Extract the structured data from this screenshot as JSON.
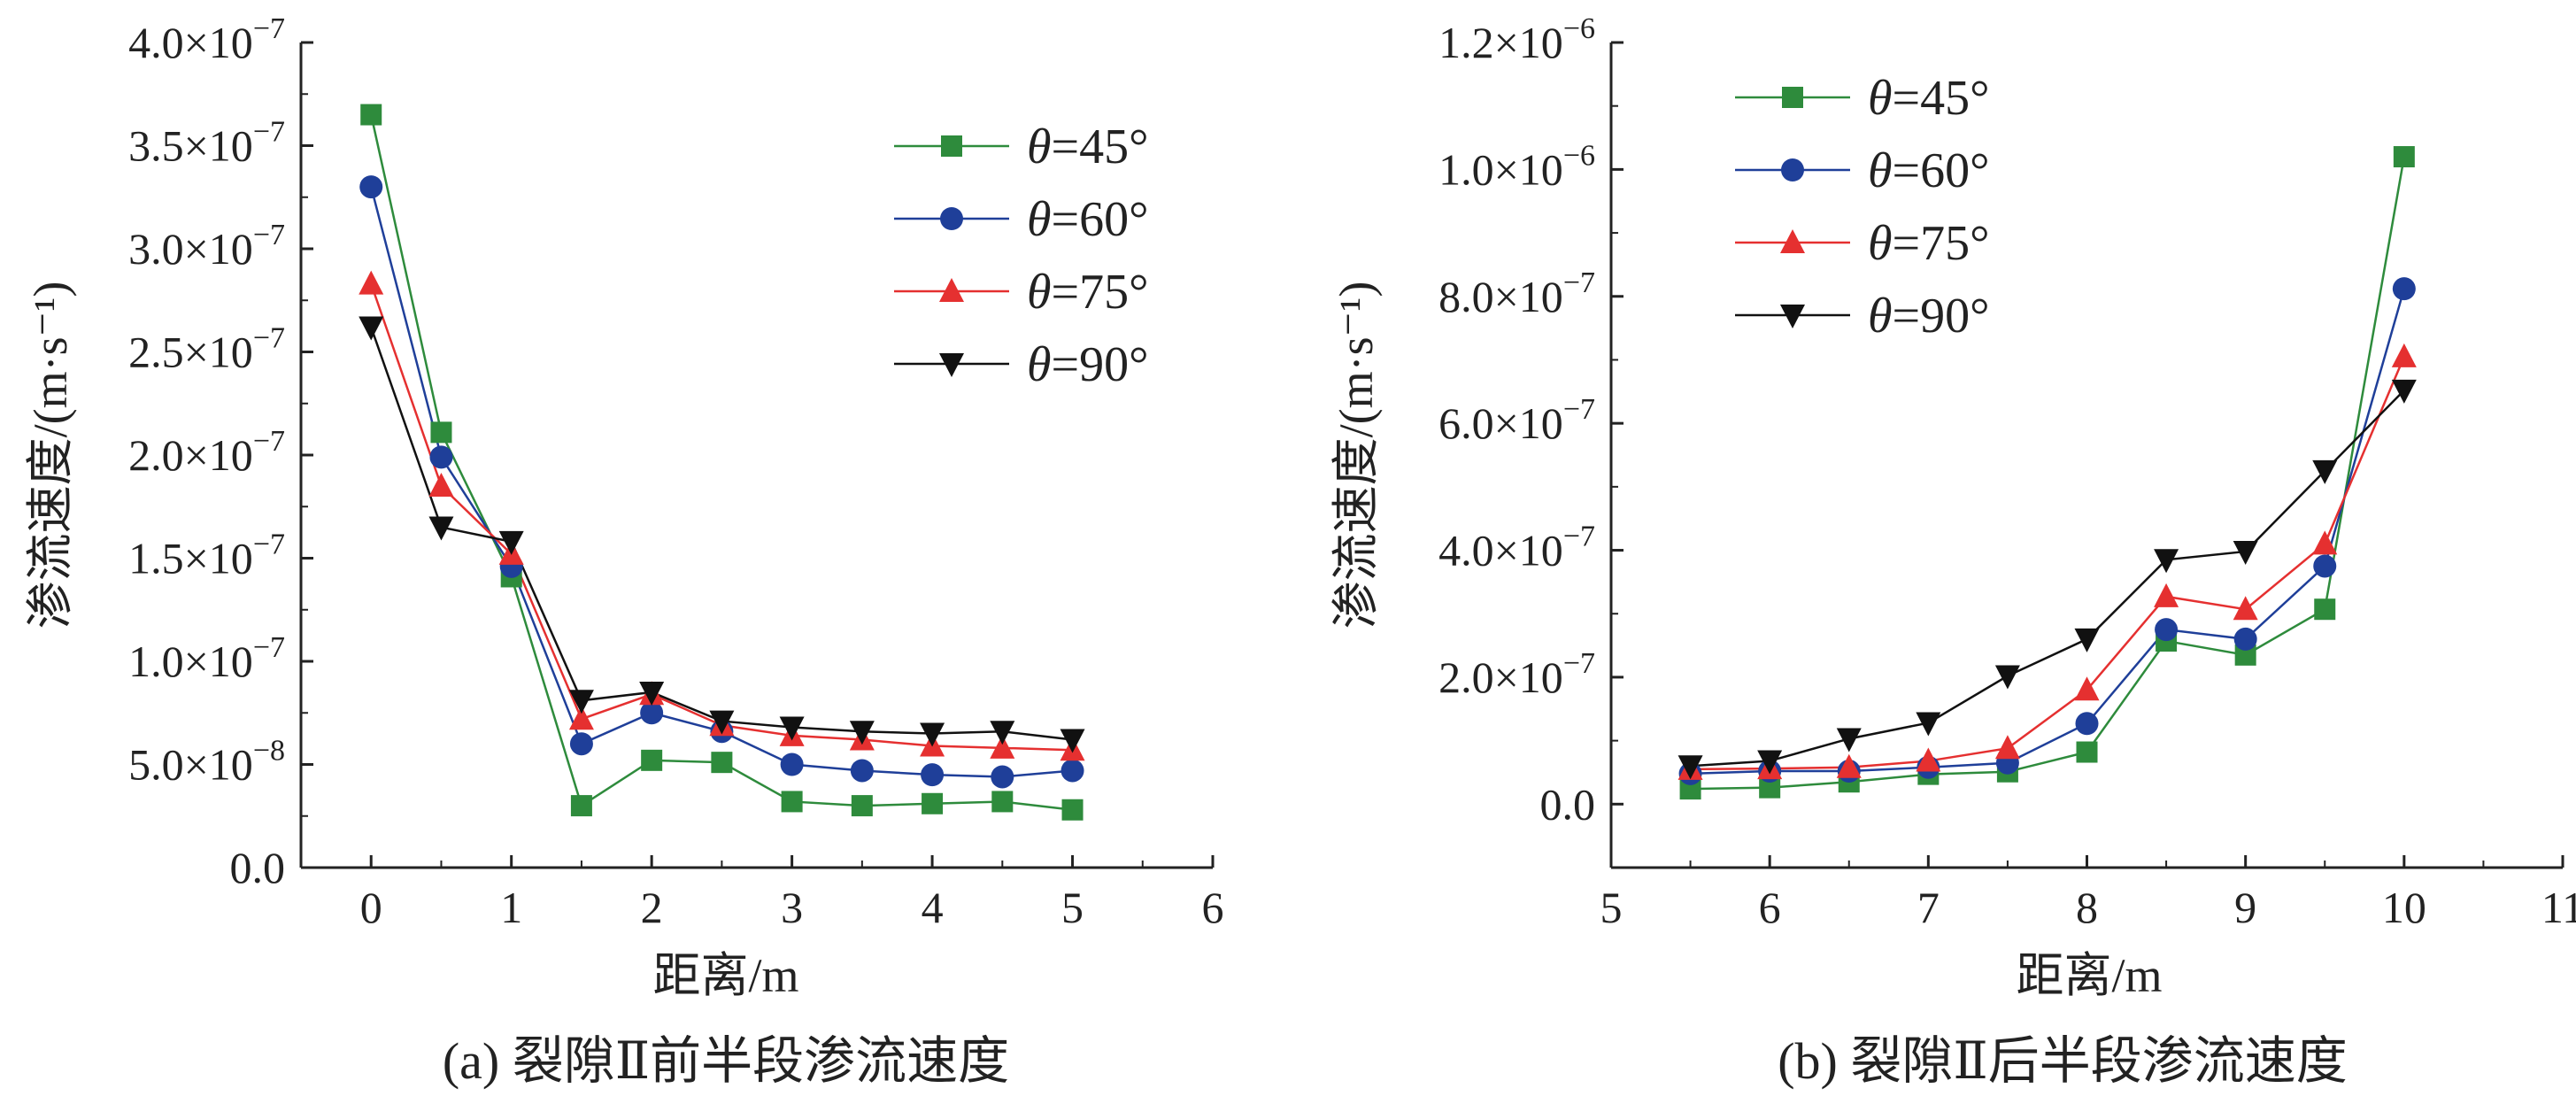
{
  "chart_data": [
    {
      "type": "line",
      "caption": "(a) 裂隙Ⅱ前半段渗流速度",
      "xlabel": "距离/m",
      "ylabel": "渗流速度/(m·s⁻¹)",
      "xlim": [
        -0.5,
        6
      ],
      "ylim": [
        0,
        4e-07
      ],
      "x_ticks": [
        0,
        1,
        2,
        3,
        4,
        5,
        6
      ],
      "y_ticks": [
        {
          "value": 0,
          "label": "0.0"
        },
        {
          "value": 5e-08,
          "label": "5.0×10",
          "exp": "−8"
        },
        {
          "value": 1e-07,
          "label": "1.0×10",
          "exp": "−7"
        },
        {
          "value": 1.5e-07,
          "label": "1.5×10",
          "exp": "−7"
        },
        {
          "value": 2e-07,
          "label": "2.0×10",
          "exp": "−7"
        },
        {
          "value": 2.5e-07,
          "label": "2.5×10",
          "exp": "−7"
        },
        {
          "value": 3e-07,
          "label": "3.0×10",
          "exp": "−7"
        },
        {
          "value": 3.5e-07,
          "label": "3.5×10",
          "exp": "−7"
        },
        {
          "value": 4e-07,
          "label": "4.0×10",
          "exp": "−7"
        }
      ],
      "legend_position": "top-right",
      "x": [
        0,
        0.5,
        1,
        1.5,
        2,
        2.5,
        3,
        3.5,
        4,
        4.5,
        5
      ],
      "series": [
        {
          "name": "θ=45°",
          "theta": "θ",
          "deg": "=45°",
          "color": "#2e8b3c",
          "marker": "square",
          "values": [
            3.65e-07,
            2.11e-07,
            1.41e-07,
            3e-08,
            5.2e-08,
            5.1e-08,
            3.2e-08,
            3e-08,
            3.1e-08,
            3.2e-08,
            2.8e-08
          ]
        },
        {
          "name": "θ=60°",
          "theta": "θ",
          "deg": "=60°",
          "color": "#1f3f99",
          "marker": "circle",
          "values": [
            3.3e-07,
            1.99e-07,
            1.46e-07,
            6e-08,
            7.5e-08,
            6.6e-08,
            5e-08,
            4.7e-08,
            4.5e-08,
            4.4e-08,
            4.7e-08
          ]
        },
        {
          "name": "θ=75°",
          "theta": "θ",
          "deg": "=75°",
          "color": "#e53030",
          "marker": "triangle-up",
          "values": [
            2.83e-07,
            1.85e-07,
            1.52e-07,
            7.2e-08,
            8.4e-08,
            6.9e-08,
            6.4e-08,
            6.2e-08,
            5.9e-08,
            5.8e-08,
            5.7e-08
          ]
        },
        {
          "name": "θ=90°",
          "theta": "θ",
          "deg": "=90°",
          "color": "#111111",
          "marker": "triangle-down",
          "values": [
            2.62e-07,
            1.65e-07,
            1.58e-07,
            8.1e-08,
            8.5e-08,
            7.1e-08,
            6.8e-08,
            6.6e-08,
            6.5e-08,
            6.6e-08,
            6.2e-08
          ]
        }
      ]
    },
    {
      "type": "line",
      "caption": "(b) 裂隙Ⅱ后半段渗流速度",
      "xlabel": "距离/m",
      "ylabel": "渗流速度/(m·s⁻¹)",
      "xlim": [
        5,
        11
      ],
      "ylim": [
        -1e-07,
        1.2e-06
      ],
      "x_ticks": [
        5,
        6,
        7,
        8,
        9,
        10,
        11
      ],
      "y_ticks": [
        {
          "value": 0,
          "label": "0.0"
        },
        {
          "value": 2e-07,
          "label": "2.0×10",
          "exp": "−7"
        },
        {
          "value": 4e-07,
          "label": "4.0×10",
          "exp": "−7"
        },
        {
          "value": 6e-07,
          "label": "6.0×10",
          "exp": "−7"
        },
        {
          "value": 8e-07,
          "label": "8.0×10",
          "exp": "−7"
        },
        {
          "value": 1e-06,
          "label": "1.0×10",
          "exp": "−6"
        },
        {
          "value": 1.2e-06,
          "label": "1.2×10",
          "exp": "−6"
        }
      ],
      "legend_position": "top-left",
      "x": [
        5.5,
        6,
        6.5,
        7,
        7.5,
        8,
        8.5,
        9,
        9.5,
        10
      ],
      "series": [
        {
          "name": "θ=45°",
          "theta": "θ",
          "deg": "=45°",
          "color": "#2e8b3c",
          "marker": "square",
          "values": [
            2.4e-08,
            2.6e-08,
            3.5e-08,
            4.7e-08,
            5.1e-08,
            8.2e-08,
            2.57e-07,
            2.35e-07,
            3.07e-07,
            1.02e-06
          ]
        },
        {
          "name": "θ=60°",
          "theta": "θ",
          "deg": "=60°",
          "color": "#1f3f99",
          "marker": "circle",
          "values": [
            4.8e-08,
            5.2e-08,
            5.2e-08,
            5.8e-08,
            6.5e-08,
            1.27e-07,
            2.75e-07,
            2.6e-07,
            3.75e-07,
            8.12e-07
          ]
        },
        {
          "name": "θ=75°",
          "theta": "θ",
          "deg": "=75°",
          "color": "#e53030",
          "marker": "triangle-up",
          "values": [
            5.5e-08,
            5.6e-08,
            5.8e-08,
            6.8e-08,
            8.8e-08,
            1.8e-07,
            3.27e-07,
            3.07e-07,
            4.1e-07,
            7.05e-07
          ]
        },
        {
          "name": "θ=90°",
          "theta": "θ",
          "deg": "=90°",
          "color": "#111111",
          "marker": "triangle-down",
          "values": [
            6e-08,
            6.8e-08,
            1.03e-07,
            1.28e-07,
            2.02e-07,
            2.6e-07,
            3.85e-07,
            3.98e-07,
            5.25e-07,
            6.52e-07
          ]
        }
      ]
    }
  ]
}
